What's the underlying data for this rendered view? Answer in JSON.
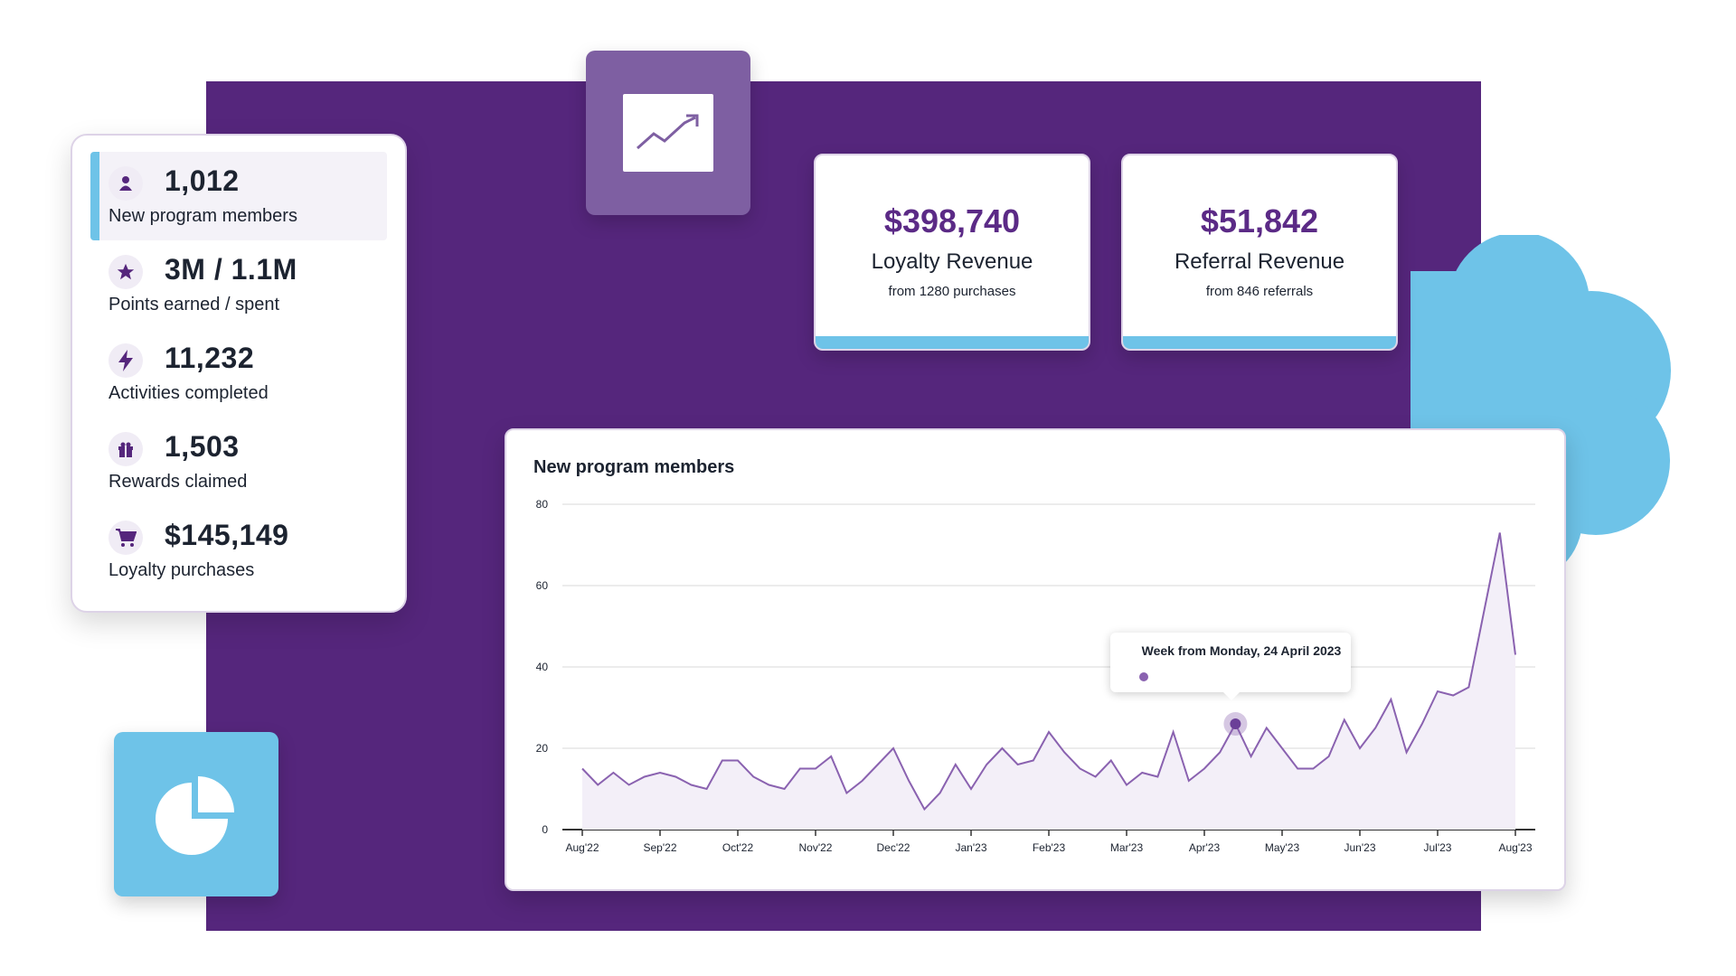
{
  "stats": [
    {
      "value": "1,012",
      "label": "New program members",
      "icon": "user-icon",
      "active": true
    },
    {
      "value": "3M / 1.1M",
      "label": "Points earned / spent",
      "icon": "star-icon",
      "active": false
    },
    {
      "value": "11,232",
      "label": "Activities completed",
      "icon": "lightning-icon",
      "active": false
    },
    {
      "value": "1,503",
      "label": "Rewards claimed",
      "icon": "gift-icon",
      "active": false
    },
    {
      "value": "$145,149",
      "label": "Loyalty purchases",
      "icon": "cart-icon",
      "active": false
    }
  ],
  "revenue": [
    {
      "amount": "$398,740",
      "title": "Loyalty Revenue",
      "sub": "from 1280 purchases"
    },
    {
      "amount": "$51,842",
      "title": "Referral Revenue",
      "sub": "from 846 referrals"
    }
  ],
  "tiles": {
    "trend": "trend-chart-icon",
    "pie": "pie-chart-icon"
  },
  "colors": {
    "purple": "#55267c",
    "accent_purple": "#5b2a86",
    "blue": "#6ec3e8",
    "line": "#8a62b0"
  },
  "chart_data": {
    "type": "area",
    "title": "New program members",
    "ylim": [
      0,
      80
    ],
    "yticks": [
      0,
      20,
      40,
      60,
      80
    ],
    "xtick_labels": [
      "Aug'22",
      "Sep'22",
      "Oct'22",
      "Nov'22",
      "Dec'22",
      "Jan'23",
      "Feb'23",
      "Mar'23",
      "Apr'23",
      "May'23",
      "Jun'23",
      "Jul'23",
      "Aug'23"
    ],
    "values": [
      15,
      11,
      14,
      11,
      13,
      14,
      13,
      11,
      10,
      17,
      17,
      13,
      11,
      10,
      15,
      15,
      18,
      9,
      12,
      16,
      20,
      12,
      5,
      9,
      16,
      10,
      16,
      20,
      16,
      17,
      24,
      19,
      15,
      13,
      17,
      11,
      14,
      13,
      24,
      12,
      15,
      19,
      26,
      18,
      25,
      20,
      15,
      15,
      18,
      27,
      20,
      25,
      32,
      19,
      26,
      34,
      33,
      35,
      54,
      73,
      43
    ],
    "grid": true,
    "highlight_index": 42,
    "tooltip": "Week from Monday, 24 April 2023"
  }
}
